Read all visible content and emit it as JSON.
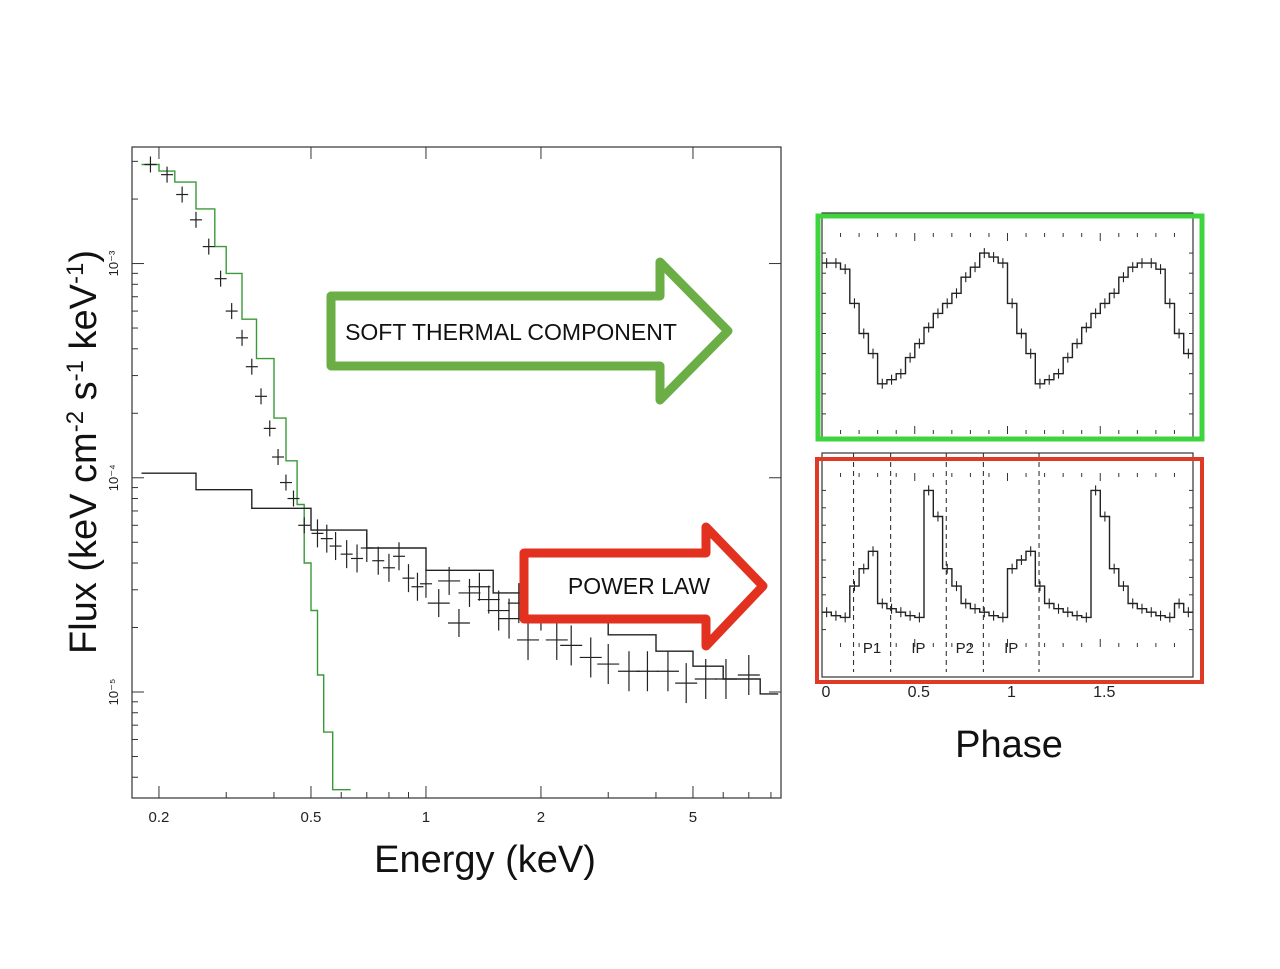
{
  "chart_data": [
    {
      "type": "line",
      "subtype": "step-spectrum",
      "xlabel": "Energy (keV)",
      "ylabel_parts": [
        "Flux (keV cm",
        "-2",
        " s",
        "-1",
        " keV",
        "-1",
        ")"
      ],
      "x_scale": "log",
      "y_scale": "log",
      "xlim": [
        0.17,
        8.5
      ],
      "ylim": [
        3.2e-06,
        0.0035
      ],
      "x_ticks": [
        0.2,
        0.5,
        1,
        2,
        5
      ],
      "x_tick_labels": [
        "0.2",
        "0.5",
        "1",
        "2",
        "5"
      ],
      "y_ticks": [
        0.001,
        0.0001,
        1e-05
      ],
      "y_tick_labels": [
        "10⁻³",
        "10⁻⁴",
        "10⁻⁵"
      ],
      "series": [
        {
          "role": "thermal-model",
          "color": "#3a9a3a",
          "x": [
            0.18,
            0.2,
            0.22,
            0.25,
            0.28,
            0.3,
            0.33,
            0.36,
            0.4,
            0.43,
            0.46,
            0.48,
            0.5,
            0.52,
            0.54,
            0.57
          ],
          "y": [
            0.0029,
            0.0027,
            0.0024,
            0.0018,
            0.0012,
            0.0009,
            0.00055,
            0.00036,
            0.00019,
            0.00012,
            7.5e-05,
            4e-05,
            2.4e-05,
            1.2e-05,
            6.5e-06,
            3.5e-06
          ]
        },
        {
          "role": "power-law-model",
          "color": "#222222",
          "x": [
            0.18,
            0.25,
            0.35,
            0.5,
            0.7,
            1.0,
            1.5,
            2.0,
            3.0,
            4.0,
            5.0,
            6.0,
            7.5
          ],
          "y": [
            0.000105,
            8.8e-05,
            7.2e-05,
            5.7e-05,
            4.7e-05,
            3.7e-05,
            2.9e-05,
            2.45e-05,
            1.85e-05,
            1.55e-05,
            1.32e-05,
            1.15e-05,
            9.8e-06
          ]
        },
        {
          "role": "data",
          "color": "#222222",
          "x": [
            0.19,
            0.21,
            0.23,
            0.25,
            0.27,
            0.29,
            0.31,
            0.33,
            0.35,
            0.37,
            0.39,
            0.41,
            0.43,
            0.45,
            0.48,
            0.52,
            0.55,
            0.58,
            0.62,
            0.66,
            0.7,
            0.75,
            0.8,
            0.85,
            0.9,
            0.95,
            1.0,
            1.08,
            1.15,
            1.22,
            1.3,
            1.38,
            1.46,
            1.55,
            1.65,
            1.75,
            1.85,
            2.0,
            2.2,
            2.4,
            2.7,
            3.0,
            3.4,
            3.8,
            4.3,
            4.8,
            5.4,
            6.1,
            7.0
          ],
          "y": [
            0.0029,
            0.0026,
            0.0021,
            0.0016,
            0.0012,
            0.00085,
            0.0006,
            0.00045,
            0.00033,
            0.00024,
            0.00017,
            0.000125,
            9.5e-05,
            8e-05,
            6e-05,
            5.5e-05,
            5.2e-05,
            4.8e-05,
            4.4e-05,
            4.2e-05,
            4.7e-05,
            4.1e-05,
            3.8e-05,
            4.3e-05,
            3.4e-05,
            3.1e-05,
            3.2e-05,
            2.6e-05,
            3.3e-05,
            2.1e-05,
            2.9e-05,
            3.1e-05,
            2.7e-05,
            2.4e-05,
            2.2e-05,
            2.6e-05,
            1.75e-05,
            2.4e-05,
            1.75e-05,
            1.65e-05,
            1.45e-05,
            1.35e-05,
            1.25e-05,
            1.25e-05,
            1.25e-05,
            1.1e-05,
            1.15e-05,
            1.15e-05,
            1.2e-05
          ]
        }
      ]
    },
    {
      "type": "line",
      "subtype": "pulse-profile",
      "panel": "soft thermal",
      "xlim": [
        0,
        2
      ],
      "x": [
        0.025,
        0.075,
        0.125,
        0.175,
        0.225,
        0.275,
        0.325,
        0.375,
        0.425,
        0.475,
        0.525,
        0.575,
        0.625,
        0.675,
        0.725,
        0.775,
        0.825,
        0.875,
        0.925,
        0.975,
        1.025,
        1.075,
        1.125,
        1.175,
        1.225,
        1.275,
        1.325,
        1.375,
        1.425,
        1.475,
        1.525,
        1.575,
        1.625,
        1.675,
        1.725,
        1.775,
        1.825,
        1.875,
        1.925,
        1.975
      ],
      "y": [
        0.85,
        0.85,
        0.82,
        0.65,
        0.5,
        0.4,
        0.25,
        0.27,
        0.3,
        0.38,
        0.45,
        0.53,
        0.6,
        0.65,
        0.7,
        0.78,
        0.83,
        0.9,
        0.88,
        0.85,
        0.65,
        0.5,
        0.4,
        0.25,
        0.27,
        0.3,
        0.38,
        0.45,
        0.53,
        0.6,
        0.65,
        0.7,
        0.78,
        0.83,
        0.85,
        0.85,
        0.82,
        0.65,
        0.5,
        0.4
      ]
    },
    {
      "type": "line",
      "subtype": "pulse-profile",
      "panel": "power law",
      "xlim": [
        0,
        2
      ],
      "x_ticks": [
        0,
        0.5,
        1,
        1.5
      ],
      "x_tick_labels": [
        "0",
        "0.5",
        "1",
        "1.5"
      ],
      "xlabel": "Phase",
      "x": [
        0.025,
        0.075,
        0.125,
        0.175,
        0.225,
        0.275,
        0.325,
        0.375,
        0.425,
        0.475,
        0.525,
        0.575,
        0.625,
        0.675,
        0.725,
        0.775,
        0.825,
        0.875,
        0.925,
        0.975,
        1.025,
        1.075,
        1.125,
        1.175,
        1.225,
        1.275,
        1.325,
        1.375,
        1.425,
        1.475,
        1.525,
        1.575,
        1.625,
        1.675,
        1.725,
        1.775,
        1.825,
        1.875,
        1.925,
        1.975
      ],
      "y": [
        0.2,
        0.18,
        0.17,
        0.35,
        0.45,
        0.55,
        0.25,
        0.22,
        0.2,
        0.18,
        0.17,
        0.9,
        0.75,
        0.45,
        0.35,
        0.25,
        0.22,
        0.2,
        0.18,
        0.17,
        0.45,
        0.5,
        0.55,
        0.35,
        0.25,
        0.22,
        0.2,
        0.18,
        0.17,
        0.9,
        0.75,
        0.45,
        0.35,
        0.25,
        0.22,
        0.2,
        0.18,
        0.17,
        0.25,
        0.2
      ],
      "regions": [
        {
          "label": "P1",
          "start": 0.17,
          "end": 0.37
        },
        {
          "label": "IP",
          "start": 0.37,
          "end": 0.67
        },
        {
          "label": "P2",
          "start": 0.67,
          "end": 0.87
        },
        {
          "label": "IP",
          "start": 0.87,
          "end": 1.17
        }
      ]
    }
  ],
  "annotations": {
    "thermal_arrow": {
      "label": "SOFT THERMAL COMPONENT",
      "color": "#6aae45"
    },
    "powerlaw_arrow": {
      "label": "POWER LAW",
      "color": "#e2321f"
    }
  },
  "frame_colors": {
    "top_panel": "#3ed43e",
    "bottom_panel": "#de3a26"
  }
}
